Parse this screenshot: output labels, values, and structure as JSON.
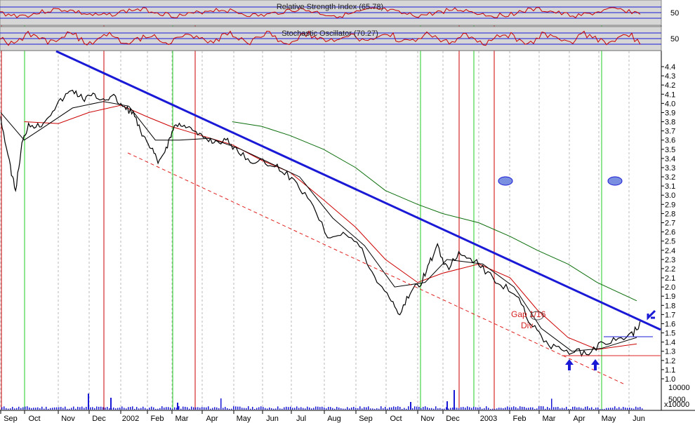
{
  "chart_data": {
    "type": "line",
    "colors": {
      "price": "#000000",
      "ma_short": "#000000",
      "ma_mid": "#cc0000",
      "ma_long": "#0a6e0a",
      "trendline": "#1a1ad6",
      "support_channel": "#e02020",
      "buy_marker": "#22cc22",
      "sell_marker": "#cc0000",
      "indicator_line": "#cc0000",
      "indicator_ref": "#1a1ad6",
      "indicator_bg": "#c0c0c0",
      "volume": "#1a1ad6",
      "arrows": "#1a1ad6"
    },
    "panels": [
      {
        "title": "Relative Strength Index (65.78)",
        "ref_label": "50"
      },
      {
        "title": "Stochastic Oscillator (70.27)",
        "ref_label": "50"
      }
    ],
    "x_labels": [
      "Sep",
      "Oct",
      "Nov",
      "Dec",
      "2002",
      "Feb",
      "Mar",
      "Apr",
      "May",
      "Jun",
      "Jul",
      "Aug",
      "Sep",
      "Oct",
      "Nov",
      "Dec",
      "2003",
      "Feb",
      "Mar",
      "Apr",
      "May",
      "Jun"
    ],
    "y_ticks": [
      "4.4",
      "4.3",
      "4.2",
      "4.1",
      "4.0",
      "3.9",
      "3.8",
      "3.7",
      "3.6",
      "3.5",
      "3.4",
      "3.3",
      "3.2",
      "3.1",
      "3.0",
      "2.9",
      "2.8",
      "2.7",
      "2.6",
      "2.5",
      "2.4",
      "2.3",
      "2.2",
      "2.1",
      "2.0",
      "1.9",
      "1.8",
      "1.7",
      "1.6",
      "1.5",
      "1.4",
      "1.3",
      "1.2",
      "1.1",
      "1.0"
    ],
    "ylim": [
      1.0,
      4.4
    ],
    "volume_ticks": [
      "10000",
      "5000"
    ],
    "volume_unit": "x10000",
    "annotations": [
      "Gap 1/16",
      "Div"
    ],
    "buy_signals": [
      "Sep",
      "Nov",
      "Feb",
      "Oct",
      "Dec",
      "May"
    ],
    "sell_signals": [
      "Sep",
      "Dec",
      "Mar",
      "Nov",
      "Dec",
      "2003"
    ],
    "price": [
      {
        "x": "2001-09-01",
        "y": 3.85
      },
      {
        "x": "2001-09-12",
        "y": 3.35
      },
      {
        "x": "2001-09-20",
        "y": 3.05
      },
      {
        "x": "2001-09-28",
        "y": 3.55
      },
      {
        "x": "2001-10-05",
        "y": 3.78
      },
      {
        "x": "2001-10-15",
        "y": 3.75
      },
      {
        "x": "2001-10-25",
        "y": 3.9
      },
      {
        "x": "2001-11-05",
        "y": 4.05
      },
      {
        "x": "2001-11-15",
        "y": 4.15
      },
      {
        "x": "2001-11-25",
        "y": 4.05
      },
      {
        "x": "2001-12-05",
        "y": 4.08
      },
      {
        "x": "2001-12-15",
        "y": 4.05
      },
      {
        "x": "2001-12-25",
        "y": 4.07
      },
      {
        "x": "2002-01-05",
        "y": 3.95
      },
      {
        "x": "2002-01-15",
        "y": 3.9
      },
      {
        "x": "2002-01-25",
        "y": 3.65
      },
      {
        "x": "2002-02-05",
        "y": 3.5
      },
      {
        "x": "2002-02-15",
        "y": 3.35
      },
      {
        "x": "2002-02-25",
        "y": 3.55
      },
      {
        "x": "2002-03-05",
        "y": 3.75
      },
      {
        "x": "2002-03-15",
        "y": 3.78
      },
      {
        "x": "2002-03-25",
        "y": 3.68
      },
      {
        "x": "2002-04-05",
        "y": 3.62
      },
      {
        "x": "2002-04-15",
        "y": 3.58
      },
      {
        "x": "2002-04-25",
        "y": 3.6
      },
      {
        "x": "2002-05-05",
        "y": 3.5
      },
      {
        "x": "2002-05-20",
        "y": 3.38
      },
      {
        "x": "2002-06-05",
        "y": 3.35
      },
      {
        "x": "2002-06-20",
        "y": 3.3
      },
      {
        "x": "2002-07-05",
        "y": 3.15
      },
      {
        "x": "2002-07-20",
        "y": 2.95
      },
      {
        "x": "2002-08-05",
        "y": 2.55
      },
      {
        "x": "2002-08-20",
        "y": 2.6
      },
      {
        "x": "2002-09-05",
        "y": 2.45
      },
      {
        "x": "2002-09-20",
        "y": 2.1
      },
      {
        "x": "2002-10-05",
        "y": 1.9
      },
      {
        "x": "2002-10-15",
        "y": 1.7
      },
      {
        "x": "2002-10-25",
        "y": 1.95
      },
      {
        "x": "2002-11-05",
        "y": 2.05
      },
      {
        "x": "2002-11-15",
        "y": 2.25
      },
      {
        "x": "2002-11-25",
        "y": 2.45
      },
      {
        "x": "2002-12-05",
        "y": 2.2
      },
      {
        "x": "2002-12-15",
        "y": 2.35
      },
      {
        "x": "2002-12-25",
        "y": 2.32
      },
      {
        "x": "2003-01-05",
        "y": 2.2
      },
      {
        "x": "2003-01-20",
        "y": 2.05
      },
      {
        "x": "2003-02-05",
        "y": 1.95
      },
      {
        "x": "2003-02-20",
        "y": 1.65
      },
      {
        "x": "2003-03-05",
        "y": 1.45
      },
      {
        "x": "2003-03-20",
        "y": 1.32
      },
      {
        "x": "2003-04-05",
        "y": 1.3
      },
      {
        "x": "2003-04-20",
        "y": 1.28
      },
      {
        "x": "2003-05-05",
        "y": 1.38
      },
      {
        "x": "2003-05-20",
        "y": 1.42
      },
      {
        "x": "2003-06-05",
        "y": 1.48
      },
      {
        "x": "2003-06-15",
        "y": 1.62
      }
    ],
    "ma_short": [
      {
        "x": "2001-09-01",
        "y": 3.9
      },
      {
        "x": "2001-10-01",
        "y": 3.6
      },
      {
        "x": "2001-10-20",
        "y": 3.75
      },
      {
        "x": "2001-11-15",
        "y": 3.95
      },
      {
        "x": "2001-12-15",
        "y": 4.02
      },
      {
        "x": "2002-01-10",
        "y": 3.97
      },
      {
        "x": "2002-02-10",
        "y": 3.6
      },
      {
        "x": "2002-03-10",
        "y": 3.6
      },
      {
        "x": "2002-04-10",
        "y": 3.62
      },
      {
        "x": "2002-05-10",
        "y": 3.5
      },
      {
        "x": "2002-06-10",
        "y": 3.35
      },
      {
        "x": "2002-07-10",
        "y": 3.2
      },
      {
        "x": "2002-08-10",
        "y": 2.75
      },
      {
        "x": "2002-09-10",
        "y": 2.45
      },
      {
        "x": "2002-10-10",
        "y": 2.0
      },
      {
        "x": "2002-11-10",
        "y": 2.05
      },
      {
        "x": "2002-12-05",
        "y": 2.3
      },
      {
        "x": "2003-01-05",
        "y": 2.25
      },
      {
        "x": "2003-02-05",
        "y": 2.0
      },
      {
        "x": "2003-03-05",
        "y": 1.55
      },
      {
        "x": "2003-04-05",
        "y": 1.3
      },
      {
        "x": "2003-05-05",
        "y": 1.33
      },
      {
        "x": "2003-06-10",
        "y": 1.45
      }
    ],
    "ma_mid": [
      {
        "x": "2001-10-01",
        "y": 3.8
      },
      {
        "x": "2001-11-01",
        "y": 3.78
      },
      {
        "x": "2001-12-01",
        "y": 3.9
      },
      {
        "x": "2002-01-01",
        "y": 3.98
      },
      {
        "x": "2002-02-01",
        "y": 3.85
      },
      {
        "x": "2002-03-01",
        "y": 3.75
      },
      {
        "x": "2002-04-01",
        "y": 3.65
      },
      {
        "x": "2002-05-01",
        "y": 3.55
      },
      {
        "x": "2002-06-01",
        "y": 3.38
      },
      {
        "x": "2002-07-01",
        "y": 3.25
      },
      {
        "x": "2002-08-01",
        "y": 2.95
      },
      {
        "x": "2002-09-01",
        "y": 2.65
      },
      {
        "x": "2002-10-01",
        "y": 2.3
      },
      {
        "x": "2002-11-01",
        "y": 2.05
      },
      {
        "x": "2002-12-01",
        "y": 2.15
      },
      {
        "x": "2003-01-01",
        "y": 2.25
      },
      {
        "x": "2003-02-01",
        "y": 2.1
      },
      {
        "x": "2003-03-01",
        "y": 1.75
      },
      {
        "x": "2003-04-01",
        "y": 1.45
      },
      {
        "x": "2003-05-01",
        "y": 1.32
      },
      {
        "x": "2003-06-10",
        "y": 1.38
      }
    ],
    "ma_long": [
      {
        "x": "2002-05-01",
        "y": 3.8
      },
      {
        "x": "2002-06-01",
        "y": 3.75
      },
      {
        "x": "2002-07-01",
        "y": 3.65
      },
      {
        "x": "2002-08-01",
        "y": 3.5
      },
      {
        "x": "2002-09-01",
        "y": 3.3
      },
      {
        "x": "2002-10-01",
        "y": 3.05
      },
      {
        "x": "2002-11-01",
        "y": 2.9
      },
      {
        "x": "2002-12-01",
        "y": 2.8
      },
      {
        "x": "2003-01-01",
        "y": 2.7
      },
      {
        "x": "2003-02-01",
        "y": 2.55
      },
      {
        "x": "2003-03-01",
        "y": 2.4
      },
      {
        "x": "2003-04-01",
        "y": 2.25
      },
      {
        "x": "2003-05-01",
        "y": 2.05
      },
      {
        "x": "2003-06-10",
        "y": 1.85
      }
    ]
  }
}
